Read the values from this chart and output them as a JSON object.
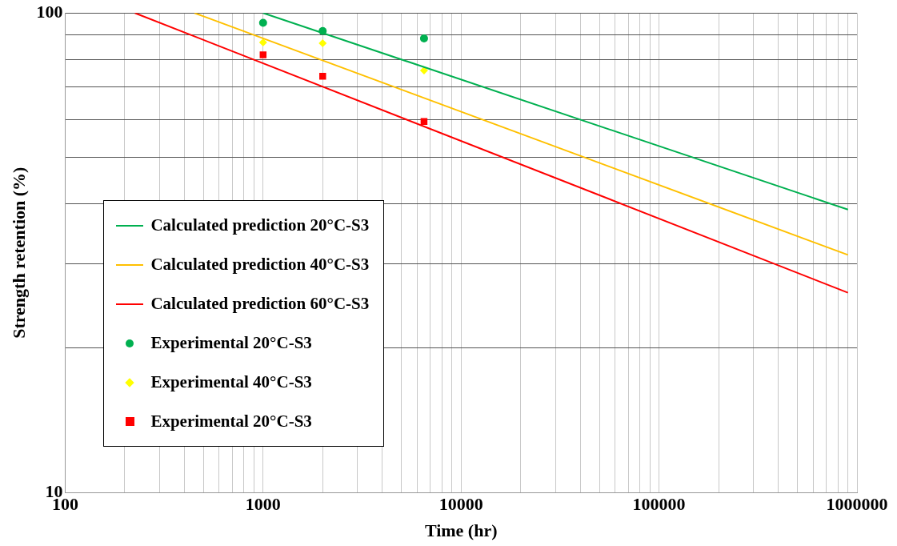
{
  "chart_data": {
    "type": "line",
    "xlabel": "Time (hr)",
    "ylabel": "Strength retention (%)",
    "log": "xy",
    "grid": true,
    "legend": "left",
    "xlim": [
      100,
      1000000
    ],
    "xticks": [
      100,
      {
        "value": 200,
        "label": null
      },
      {
        "value": 300,
        "label": null
      },
      {
        "value": 400,
        "label": null
      },
      {
        "value": 500,
        "label": null
      },
      {
        "value": 600,
        "label": null
      },
      {
        "value": 700,
        "label": null
      },
      {
        "value": 800,
        "label": null
      },
      {
        "value": 900,
        "label": null
      },
      1000,
      {
        "value": 2000,
        "label": null
      },
      {
        "value": 3000,
        "label": null
      },
      {
        "value": 4000,
        "label": null
      },
      {
        "value": 5000,
        "label": null
      },
      {
        "value": 6000,
        "label": null
      },
      {
        "value": 7000,
        "label": null
      },
      {
        "value": 8000,
        "label": null
      },
      {
        "value": 9000,
        "label": null
      },
      10000,
      {
        "value": 20000,
        "label": null
      },
      {
        "value": 30000,
        "label": null
      },
      {
        "value": 40000,
        "label": null
      },
      {
        "value": 50000,
        "label": null
      },
      {
        "value": 60000,
        "label": null
      },
      {
        "value": 70000,
        "label": null
      },
      {
        "value": 80000,
        "label": null
      },
      {
        "value": 90000,
        "label": null
      },
      100000,
      {
        "value": 200000,
        "label": null
      },
      {
        "value": 300000,
        "label": null
      },
      {
        "value": 400000,
        "label": null
      },
      {
        "value": 500000,
        "label": null
      },
      {
        "value": 600000,
        "label": null
      },
      {
        "value": 700000,
        "label": null
      },
      {
        "value": 800000,
        "label": null
      },
      {
        "value": 900000,
        "label": null
      },
      1000000
    ],
    "ylim": [
      10,
      100
    ],
    "yticks": [
      10,
      {
        "value": 20,
        "label": null
      },
      {
        "value": 30,
        "label": null
      },
      {
        "value": 40,
        "label": null
      },
      {
        "value": 50,
        "label": null
      },
      {
        "value": 60,
        "label": null
      },
      {
        "value": 70,
        "label": null
      },
      {
        "value": 80,
        "label": null
      },
      {
        "value": 90,
        "label": null
      },
      100
    ],
    "series": [
      {
        "name": "Calculated prediction 20°C-S3",
        "type": "line",
        "color": "#00b050",
        "marker": "none",
        "x": [
          1000,
          900000
        ],
        "values": [
          100,
          38.9
        ]
      },
      {
        "name": "Calculated prediction 40°C-S3",
        "type": "line",
        "color": "#ffc000",
        "marker": "none",
        "x": [
          450,
          900000
        ],
        "values": [
          100,
          31.3
        ]
      },
      {
        "name": "Calculated prediction 60°C-S3",
        "type": "line",
        "color": "#ff0000",
        "marker": "none",
        "x": [
          225,
          900000
        ],
        "values": [
          100,
          26.1
        ]
      },
      {
        "name": "Experimental 20°C-S3",
        "type": "scatter",
        "color": "#00b050",
        "marker": "circle",
        "x": [
          1000,
          2000,
          6500
        ],
        "values": [
          95.4,
          91.7,
          88.5
        ]
      },
      {
        "name": "Experimental 40°C-S3",
        "type": "scatter",
        "color": "#ffff00",
        "marker": "diamond",
        "x": [
          1000,
          2000,
          6500
        ],
        "values": [
          86.8,
          86.5,
          75.9
        ]
      },
      {
        "name": "Experimental 20°C-S3",
        "type": "scatter",
        "color": "#ff0000",
        "marker": "square",
        "x": [
          1000,
          2000,
          6500
        ],
        "values": [
          81.8,
          73.8,
          59.4
        ]
      }
    ]
  }
}
